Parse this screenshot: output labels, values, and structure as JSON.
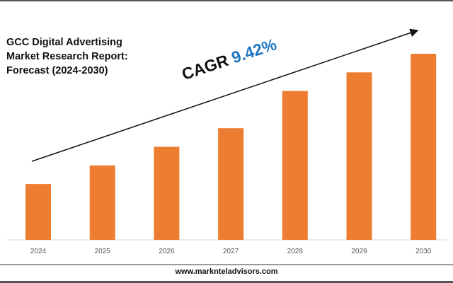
{
  "chart_data": {
    "type": "bar",
    "title": "GCC Digital Advertising Market Research Report: Forecast (2024-2030)",
    "title_lines": [
      "GCC Digital Advertising",
      "Market Research Report:",
      "Forecast (2024-2030)"
    ],
    "categories": [
      "2024",
      "2025",
      "2026",
      "2027",
      "2028",
      "2029",
      "2030"
    ],
    "values": [
      30,
      40,
      50,
      60,
      80,
      90,
      100
    ],
    "value_units": "relative index (no axis values shown)",
    "ylim": [
      0,
      100
    ],
    "xlabel": "",
    "ylabel": "",
    "grid": false,
    "bar_color": "#ed7d31",
    "annotation": {
      "label": "CAGR",
      "value": "9.42%",
      "value_color": "#1f77c4"
    }
  },
  "footer": {
    "website": "www.marknteladvisors.com"
  }
}
